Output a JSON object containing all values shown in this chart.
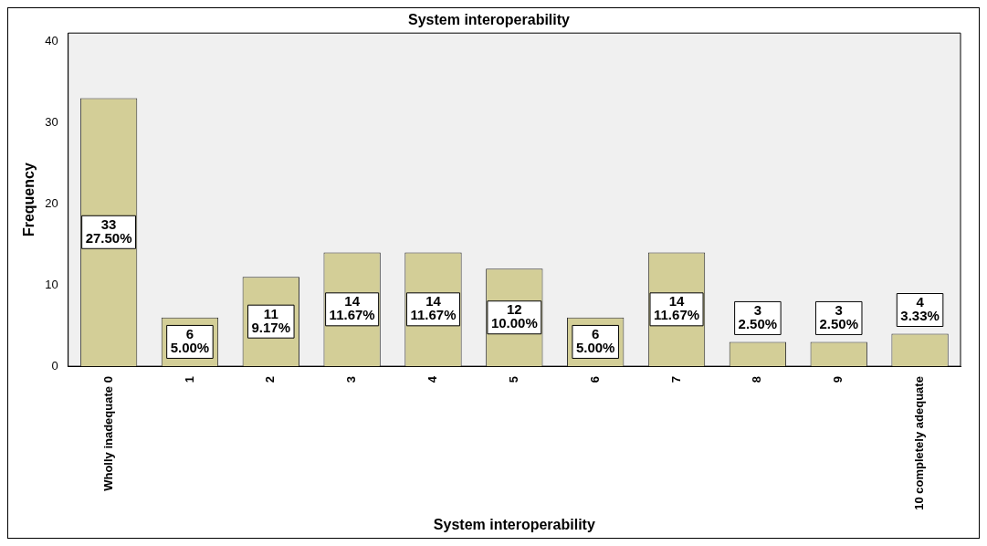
{
  "chart_data": {
    "type": "bar",
    "title": "System interoperability",
    "xlabel": "System interoperability",
    "ylabel": "Frequency",
    "categories": [
      "Wholly inadequate 0",
      "1",
      "2",
      "3",
      "4",
      "5",
      "6",
      "7",
      "8",
      "9",
      "10 completely adequate"
    ],
    "values": [
      33,
      6,
      11,
      14,
      14,
      12,
      6,
      14,
      3,
      3,
      4
    ],
    "value_labels": [
      "33\n27.50%",
      "6\n5.00%",
      "11\n9.17%",
      "14\n11.67%",
      "14\n11.67%",
      "12\n10.00%",
      "6\n5.00%",
      "14\n11.67%",
      "3\n2.50%",
      "3\n2.50%",
      "4\n3.33%"
    ],
    "color": "#d3ce97",
    "ylim": [
      0,
      41
    ],
    "yticks": [
      0,
      10,
      20,
      30,
      40
    ],
    "grid": false,
    "legend": false
  }
}
